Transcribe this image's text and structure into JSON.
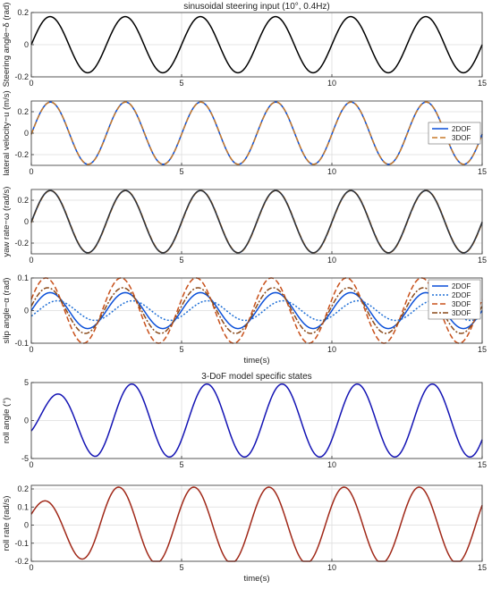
{
  "chart_data": [
    {
      "type": "line",
      "title": "sinusoidal steering input (10°, 0.4Hz)",
      "xlabel": "",
      "ylabel": "Steering angle−δ (rad)",
      "xlim": [
        0,
        15
      ],
      "ylim": [
        -0.2,
        0.2
      ],
      "xticks": [
        "0",
        "5",
        "10",
        "15"
      ],
      "yticks": [
        "-0.2",
        "0",
        "0.2"
      ],
      "ytick_values": [
        -0.2,
        0,
        0.2
      ],
      "grid": true,
      "series": [
        {
          "name": "",
          "color": "#000000",
          "amp": 0.1745,
          "freq": 0.4,
          "phase": 0,
          "dash": ""
        }
      ]
    },
    {
      "type": "line",
      "title": "",
      "xlabel": "",
      "ylabel": "lateral velocity−u (m/s)",
      "xlim": [
        0,
        15
      ],
      "ylim": [
        -0.3,
        0.3
      ],
      "xticks": [
        "0",
        "5",
        "10",
        "15"
      ],
      "yticks": [
        "-0.2",
        "0",
        "0.2"
      ],
      "ytick_values": [
        -0.2,
        0,
        0.2
      ],
      "grid": true,
      "legend": "right",
      "series": [
        {
          "name": "2DOF",
          "color": "#0a4fd8",
          "amp": 0.29,
          "freq": 0.4,
          "phase": -0.03,
          "dash": ""
        },
        {
          "name": "3DOF",
          "color": "#c87a2a",
          "amp": 0.29,
          "freq": 0.4,
          "phase": -0.04,
          "dash": "6,3"
        }
      ]
    },
    {
      "type": "line",
      "title": "",
      "xlabel": "",
      "ylabel": "yaw rate−ω (rad/s)",
      "xlim": [
        0,
        15
      ],
      "ylim": [
        -0.3,
        0.3
      ],
      "xticks": [
        "0",
        "5",
        "10",
        "15"
      ],
      "yticks": [
        "-0.2",
        "0",
        "0.2"
      ],
      "ytick_values": [
        -0.2,
        0,
        0.2
      ],
      "grid": true,
      "series": [
        {
          "name": "",
          "color": "#0a4fd8",
          "amp": 0.29,
          "freq": 0.4,
          "phase": -0.02,
          "dash": ""
        },
        {
          "name": "",
          "color": "#c87a2a",
          "amp": 0.29,
          "freq": 0.4,
          "phase": -0.035,
          "dash": "6,3"
        },
        {
          "name": "",
          "color": "#333333",
          "amp": 0.29,
          "freq": 0.4,
          "phase": -0.01,
          "dash": ""
        }
      ]
    },
    {
      "type": "line",
      "title": "",
      "xlabel": "time(s)",
      "ylabel": "slip angle−α (rad)",
      "xlim": [
        0,
        15
      ],
      "ylim": [
        -0.1,
        0.1
      ],
      "xticks": [
        "0",
        "5",
        "10",
        "15"
      ],
      "yticks": [
        "-0.1",
        "0",
        "0.1"
      ],
      "ytick_values": [
        -0.1,
        0,
        0.1
      ],
      "grid": true,
      "legend": "top-right",
      "series": [
        {
          "name": "2DOF",
          "color": "#0a4fd8",
          "amp": 0.055,
          "freq": 0.4,
          "phase": 0.0,
          "dash": ""
        },
        {
          "name": "2DOF",
          "color": "#1f6fd6",
          "amp": 0.03,
          "freq": 0.4,
          "phase": -0.6,
          "dash": "2,2"
        },
        {
          "name": "3DOF",
          "color": "#c8501a",
          "amp": 0.1,
          "freq": 0.4,
          "phase": 0.35,
          "dash": "6,3"
        },
        {
          "name": "3DOF",
          "color": "#8a4a1a",
          "amp": 0.07,
          "freq": 0.4,
          "phase": 0.2,
          "dash": "6,2,2,2"
        }
      ]
    },
    {
      "type": "line",
      "title": "3-DoF model specific states",
      "xlabel": "",
      "ylabel": "roll angle (°)",
      "xlim": [
        0,
        15
      ],
      "ylim": [
        -5,
        5
      ],
      "xticks": [
        "0",
        "5",
        "10",
        "15"
      ],
      "yticks": [
        "-5",
        "0",
        "5"
      ],
      "ytick_values": [
        -5,
        0,
        5
      ],
      "grid": true,
      "series": [
        {
          "name": "",
          "color": "#1414b4",
          "amp": 4.8,
          "freq": 0.4,
          "phase": -0.55,
          "dash": "",
          "rampup": 2.2,
          "offset": 0.0
        }
      ]
    },
    {
      "type": "line",
      "title": "",
      "xlabel": "time(s)",
      "ylabel": "roll rate (rad/s)",
      "xlim": [
        0,
        15
      ],
      "ylim": [
        -0.2,
        0.22
      ],
      "xticks": [
        "0",
        "5",
        "10",
        "15"
      ],
      "yticks": [
        "-0.2",
        "-0.1",
        "0",
        "0.1",
        "0.2"
      ],
      "ytick_values": [
        -0.2,
        -0.1,
        0,
        0.1,
        0.2
      ],
      "grid": true,
      "series": [
        {
          "name": "",
          "color": "#a02818",
          "amp": 0.21,
          "freq": 0.4,
          "phase": 0.55,
          "dash": "",
          "rampup": 2.2
        }
      ]
    }
  ]
}
